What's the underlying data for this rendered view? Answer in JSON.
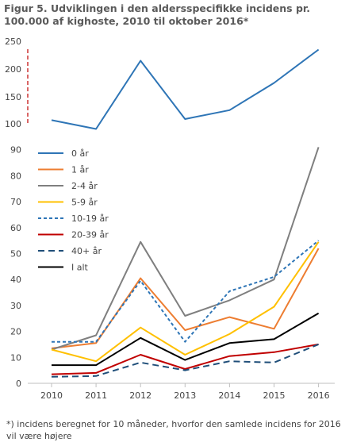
{
  "title": "Figur 5. Udviklingen i den aldersspecifikke incidens pr. 100.000 af kighoste, 2010 til oktober 2016*",
  "footnote": "*) incidens beregnet for 10 måneder, hvorfor den samlede incidens for 2016 vil være højere",
  "chart_data": {
    "type": "line",
    "title": "Figur 5. Udviklingen i den aldersspecifikke incidens pr. 100.000 af kighoste, 2010 til oktober 2016*",
    "xlabel": "",
    "ylabel": "",
    "x": [
      "2010",
      "2011",
      "2012",
      "2013",
      "2014",
      "2015",
      "2016"
    ],
    "y_axis": {
      "type": "broken",
      "lower_range": [
        0,
        100
      ],
      "upper_range": [
        100,
        250
      ],
      "tick_labels": [
        "0",
        "10",
        "20",
        "30",
        "40",
        "50",
        "60",
        "70",
        "80",
        "90",
        "100",
        "150",
        "200",
        "250"
      ]
    },
    "grid": false,
    "legend_position": "left",
    "series": [
      {
        "name": "0 år",
        "color": "#2e75b6",
        "style": "solid",
        "values": [
          108,
          98,
          215,
          110,
          126,
          175,
          235
        ]
      },
      {
        "name": "1 år",
        "color": "#ed7d31",
        "style": "solid",
        "values": [
          13.5,
          15.5,
          40.5,
          20.5,
          25.5,
          21,
          52
        ]
      },
      {
        "name": "2-4 år",
        "color": "#7f7f7f",
        "style": "solid",
        "values": [
          13,
          18.5,
          54.5,
          26,
          32,
          40,
          91
        ]
      },
      {
        "name": "5-9 år",
        "color": "#ffc000",
        "style": "solid",
        "values": [
          13,
          8.5,
          21.5,
          11,
          19,
          29.5,
          54.5
        ]
      },
      {
        "name": "10-19 år",
        "color": "#2e75b6",
        "style": "dashed",
        "values": [
          16,
          16,
          39.5,
          16,
          35.5,
          41,
          55
        ]
      },
      {
        "name": "20-39 år",
        "color": "#c00000",
        "style": "solid",
        "values": [
          3.5,
          4,
          11,
          5.5,
          10.5,
          12,
          15
        ]
      },
      {
        "name": "40+ år",
        "color": "#1f4e79",
        "style": "longdash",
        "values": [
          2.5,
          2.8,
          8,
          5,
          8.5,
          8,
          15
        ]
      },
      {
        "name": "I alt",
        "color": "#000000",
        "style": "solid",
        "values": [
          7,
          7,
          17.5,
          9,
          15.5,
          17,
          27
        ]
      }
    ]
  }
}
